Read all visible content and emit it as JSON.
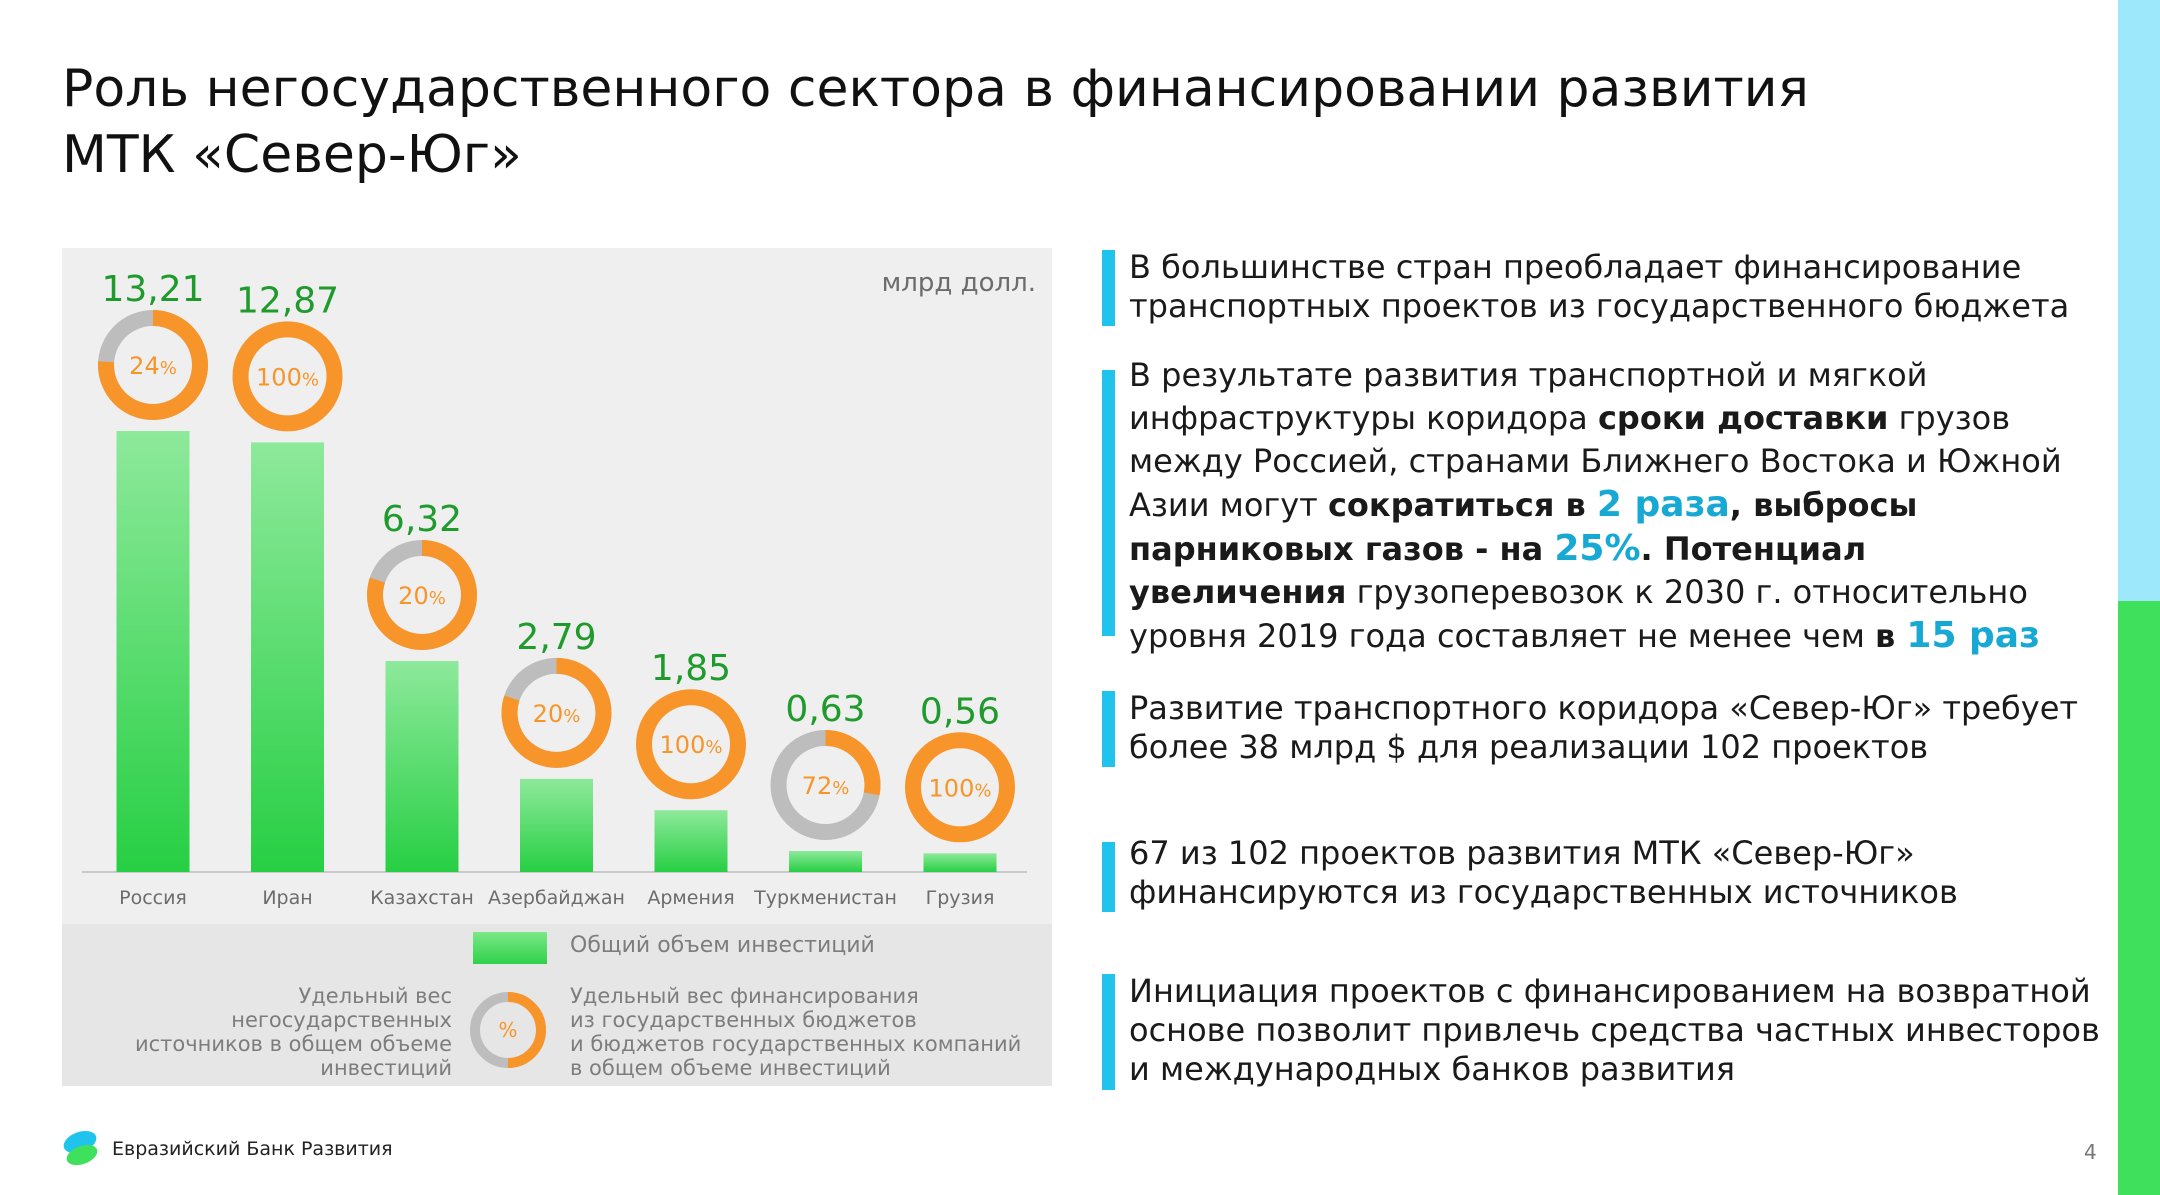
{
  "title": {
    "line1": "Роль негосударственного сектора в финансировании развития",
    "line2": "МТК «Север-Юг»"
  },
  "colors": {
    "accent_top": "#9de9fb",
    "accent_bottom": "#3fe05b",
    "callout_bar": "#1fc3ec",
    "highlight": "#17a8d4",
    "bar_green": "#2fd24a",
    "value_green": "#1f9a2d",
    "ring_orange": "#f7952a",
    "ring_gray": "#bdbdbd"
  },
  "chart_data": {
    "type": "bar",
    "unit": "млрд долл.",
    "categories": [
      "Россия",
      "Иран",
      "Казахстан",
      "Азербайджан",
      "Армения",
      "Туркменистан",
      "Грузия"
    ],
    "values": [
      13.21,
      12.87,
      6.32,
      2.79,
      1.85,
      0.63,
      0.56
    ],
    "value_labels": [
      "13,21",
      "12,87",
      "6,32",
      "2,79",
      "1,85",
      "0,63",
      "0,56"
    ],
    "state_share_percent": [
      24,
      100,
      20,
      20,
      100,
      72,
      100
    ],
    "state_share_labels": [
      "24",
      "100",
      "20",
      "20",
      "100",
      "72",
      "100"
    ],
    "percent_sign": "%",
    "legend": {
      "bar_label": "Общий объем инвестиций",
      "ring_symbol": "%",
      "left_lines": [
        "Удельный вес",
        "негосударственных",
        "источников в общем объеме",
        "инвестиций"
      ],
      "right_lines": [
        "Удельный вес финансирования",
        "из государственных бюджетов",
        "и бюджетов государственных компаний",
        "в общем объеме инвестиций"
      ]
    }
  },
  "callouts": [
    {
      "lines": [
        [
          {
            "t": "В большинстве стран преобладает финансирование"
          }
        ],
        [
          {
            "t": "транспортных проектов из государственного бюджета"
          }
        ]
      ]
    },
    {
      "lines": [
        [
          {
            "t": "В результате развития транспортной и мягкой"
          }
        ],
        [
          {
            "t": "инфраструктуры коридора "
          },
          {
            "t": "сроки доставки",
            "s": "b"
          },
          {
            "t": " грузов"
          }
        ],
        [
          {
            "t": "между Россией, странами Ближнего Востока и Южной"
          }
        ],
        [
          {
            "t": "Азии могут "
          },
          {
            "t": "сократиться в ",
            "s": "b"
          },
          {
            "t": "2 раза",
            "s": "hl"
          },
          {
            "t": ", выбросы",
            "s": "b"
          }
        ],
        [
          {
            "t": "парниковых газов - на ",
            "s": "b"
          },
          {
            "t": "25%",
            "s": "hl"
          },
          {
            "t": ". Потенциал",
            "s": "b"
          }
        ],
        [
          {
            "t": "увеличения",
            "s": "b"
          },
          {
            "t": " грузоперевозок к 2030 г. относительно"
          }
        ],
        [
          {
            "t": "уровня 2019 года составляет не менее чем "
          },
          {
            "t": "в ",
            "s": "b"
          },
          {
            "t": "15 раз",
            "s": "hl"
          }
        ]
      ]
    },
    {
      "lines": [
        [
          {
            "t": "Развитие транспортного коридора «Север-Юг» требует"
          }
        ],
        [
          {
            "t": "более 38 млрд $ для реализации 102 проектов"
          }
        ]
      ]
    },
    {
      "lines": [
        [
          {
            "t": "67 из 102 проектов развития МТК «Север-Юг»"
          }
        ],
        [
          {
            "t": "финансируются из государственных источников"
          }
        ]
      ]
    },
    {
      "lines": [
        [
          {
            "t": "Инициация проектов с финансированием на возвратной"
          }
        ],
        [
          {
            "t": "основе позволит привлечь средства частных инвесторов"
          }
        ],
        [
          {
            "t": "и международных банков развития"
          }
        ]
      ]
    }
  ],
  "footer": {
    "bank_name": "Евразийский Банк Развития",
    "page_number": "4"
  }
}
